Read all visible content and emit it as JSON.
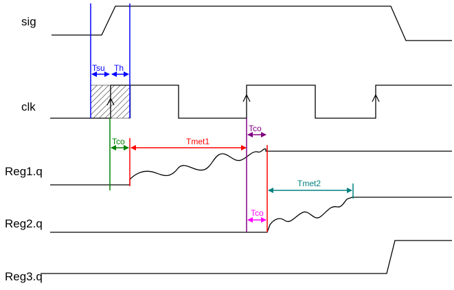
{
  "signals": {
    "sig": "sig",
    "clk": "clk",
    "reg1": "Reg1.q",
    "reg2": "Reg2.q",
    "reg3": "Reg3.q"
  },
  "annotations": {
    "tsu": "Tsu",
    "th": "Th",
    "tco_reg1": "Tco",
    "tmet1": "Tmet1",
    "tco_reg2_clk": "Tco",
    "tco_reg2": "Tco",
    "tmet2": "Tmet2"
  },
  "colors": {
    "tsu_th": "#0000ff",
    "tco_reg1": "#008000",
    "tmet1": "#ff0000",
    "tco_reg2_clk": "#800080",
    "tco_reg2": "#ff00ff",
    "tmet2": "#008080",
    "waveform": "#000000",
    "background": "#ffffff"
  }
}
